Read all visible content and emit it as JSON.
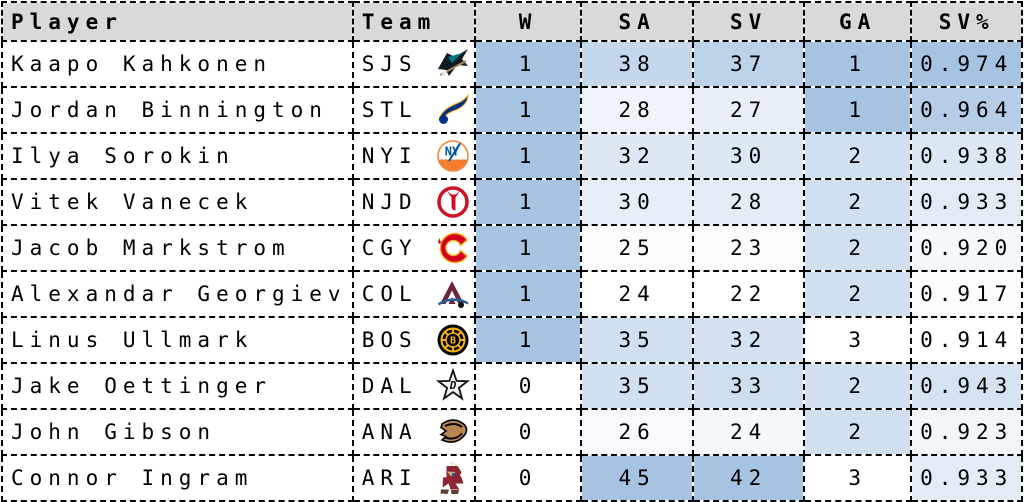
{
  "table": {
    "columns": [
      {
        "key": "player",
        "label": "Player",
        "align": "left"
      },
      {
        "key": "team",
        "label": "Team",
        "align": "left"
      },
      {
        "key": "w",
        "label": "W",
        "align": "center"
      },
      {
        "key": "sa",
        "label": "SA",
        "align": "center"
      },
      {
        "key": "sv",
        "label": "SV",
        "align": "center"
      },
      {
        "key": "ga",
        "label": "GA",
        "align": "center"
      },
      {
        "key": "sv_pct",
        "label": "SV%",
        "align": "center"
      }
    ],
    "stat_keys": [
      "w",
      "sa",
      "sv",
      "ga",
      "sv_pct"
    ],
    "rows": [
      {
        "player": "Kaapo Kahkonen",
        "team": "SJS",
        "logo_icon": "sjs-sharks-logo-icon",
        "cells": {
          "w": {
            "value": "1",
            "bg": "#a6c3e2"
          },
          "sa": {
            "value": "38",
            "bg": "#c4d7ec"
          },
          "sv": {
            "value": "37",
            "bg": "#bcd2e9"
          },
          "ga": {
            "value": "1",
            "bg": "#a6c3e2"
          },
          "sv_pct": {
            "value": "0.974",
            "bg": "#a6c3e2"
          }
        }
      },
      {
        "player": "Jordan Binnington",
        "team": "STL",
        "logo_icon": "stl-blues-logo-icon",
        "cells": {
          "w": {
            "value": "1",
            "bg": "#a6c3e2"
          },
          "sa": {
            "value": "28",
            "bg": "#eef4f9"
          },
          "sv": {
            "value": "27",
            "bg": "#e9f0f8"
          },
          "ga": {
            "value": "1",
            "bg": "#a6c3e2"
          },
          "sv_pct": {
            "value": "0.964",
            "bg": "#b5cde7"
          }
        }
      },
      {
        "player": "Ilya Sorokin",
        "team": "NYI",
        "logo_icon": "nyi-islanders-logo-icon",
        "cells": {
          "w": {
            "value": "1",
            "bg": "#a6c3e2"
          },
          "sa": {
            "value": "32",
            "bg": "#dde8f4"
          },
          "sv": {
            "value": "30",
            "bg": "#dbe7f3"
          },
          "ga": {
            "value": "2",
            "bg": "#d0e0f0"
          },
          "sv_pct": {
            "value": "0.938",
            "bg": "#dbe7f3"
          }
        }
      },
      {
        "player": "Vitek Vanecek",
        "team": "NJD",
        "logo_icon": "njd-devils-logo-icon",
        "cells": {
          "w": {
            "value": "1",
            "bg": "#a6c3e2"
          },
          "sa": {
            "value": "30",
            "bg": "#e6eef7"
          },
          "sv": {
            "value": "28",
            "bg": "#e4edf6"
          },
          "ga": {
            "value": "2",
            "bg": "#d0e0f0"
          },
          "sv_pct": {
            "value": "0.933",
            "bg": "#e3ecf6"
          }
        }
      },
      {
        "player": "Jacob Markstrom",
        "team": "CGY",
        "logo_icon": "cgy-flames-logo-icon",
        "cells": {
          "w": {
            "value": "1",
            "bg": "#a6c3e2"
          },
          "sa": {
            "value": "25",
            "bg": "#fbfcfe"
          },
          "sv": {
            "value": "23",
            "bg": "#fbfcfe"
          },
          "ga": {
            "value": "2",
            "bg": "#d0e0f0"
          },
          "sv_pct": {
            "value": "0.920",
            "bg": "#f6f9fc"
          }
        }
      },
      {
        "player": "Alexandar Georgiev",
        "team": "COL",
        "logo_icon": "col-avalanche-logo-icon",
        "cells": {
          "w": {
            "value": "1",
            "bg": "#a6c3e2"
          },
          "sa": {
            "value": "24",
            "bg": "#ffffff"
          },
          "sv": {
            "value": "22",
            "bg": "#ffffff"
          },
          "ga": {
            "value": "2",
            "bg": "#d0e0f0"
          },
          "sv_pct": {
            "value": "0.917",
            "bg": "#fbfcfe"
          }
        }
      },
      {
        "player": "Linus Ullmark",
        "team": "BOS",
        "logo_icon": "bos-bruins-logo-icon",
        "cells": {
          "w": {
            "value": "1",
            "bg": "#a6c3e2"
          },
          "sa": {
            "value": "35",
            "bg": "#d0e0f0"
          },
          "sv": {
            "value": "32",
            "bg": "#d3e1f1"
          },
          "ga": {
            "value": "3",
            "bg": "#ffffff"
          },
          "sv_pct": {
            "value": "0.914",
            "bg": "#ffffff"
          }
        }
      },
      {
        "player": "Jake Oettinger",
        "team": "DAL",
        "logo_icon": "dal-stars-logo-icon",
        "cells": {
          "w": {
            "value": "0",
            "bg": "#ffffff"
          },
          "sa": {
            "value": "35",
            "bg": "#d0e0f0"
          },
          "sv": {
            "value": "33",
            "bg": "#cedeef"
          },
          "ga": {
            "value": "2",
            "bg": "#d0e0f0"
          },
          "sv_pct": {
            "value": "0.943",
            "bg": "#d4e2f1"
          }
        }
      },
      {
        "player": "John Gibson",
        "team": "ANA",
        "logo_icon": "ana-ducks-logo-icon",
        "cells": {
          "w": {
            "value": "0",
            "bg": "#ffffff"
          },
          "sa": {
            "value": "26",
            "bg": "#f7f9fc"
          },
          "sv": {
            "value": "24",
            "bg": "#f6f9fc"
          },
          "ga": {
            "value": "2",
            "bg": "#d0e0f0"
          },
          "sv_pct": {
            "value": "0.923",
            "bg": "#f2f6fb"
          }
        }
      },
      {
        "player": "Connor Ingram",
        "team": "ARI",
        "logo_icon": "ari-coyotes-logo-icon",
        "cells": {
          "w": {
            "value": "0",
            "bg": "#ffffff"
          },
          "sa": {
            "value": "45",
            "bg": "#a6c3e2"
          },
          "sv": {
            "value": "42",
            "bg": "#a6c3e2"
          },
          "ga": {
            "value": "3",
            "bg": "#ffffff"
          },
          "sv_pct": {
            "value": "0.933",
            "bg": "#e3ecf6"
          }
        }
      }
    ]
  },
  "colors": {
    "header_bg": "#d9d9d9",
    "border": "#000000",
    "heat_high": "#a6c3e2",
    "heat_low": "#ffffff"
  },
  "chart_data": {
    "type": "table",
    "columns": [
      "Player",
      "Team",
      "W",
      "SA",
      "SV",
      "GA",
      "SV%"
    ],
    "rows": [
      [
        "Kaapo Kahkonen",
        "SJS",
        1,
        38,
        37,
        1,
        0.974
      ],
      [
        "Jordan Binnington",
        "STL",
        1,
        28,
        27,
        1,
        0.964
      ],
      [
        "Ilya Sorokin",
        "NYI",
        1,
        32,
        30,
        2,
        0.938
      ],
      [
        "Vitek Vanecek",
        "NJD",
        1,
        30,
        28,
        2,
        0.933
      ],
      [
        "Jacob Markstrom",
        "CGY",
        1,
        25,
        23,
        2,
        0.92
      ],
      [
        "Alexandar Georgiev",
        "COL",
        1,
        24,
        22,
        2,
        0.917
      ],
      [
        "Linus Ullmark",
        "BOS",
        1,
        35,
        32,
        3,
        0.914
      ],
      [
        "Jake Oettinger",
        "DAL",
        0,
        35,
        33,
        2,
        0.943
      ],
      [
        "John Gibson",
        "ANA",
        0,
        26,
        24,
        2,
        0.923
      ],
      [
        "Connor Ingram",
        "ARI",
        0,
        45,
        42,
        3,
        0.933
      ]
    ],
    "heatmap": {
      "shaded_columns": [
        "W",
        "SA",
        "SV",
        "GA",
        "SV%"
      ],
      "low_color": "#ffffff",
      "high_color": "#a6c3e2",
      "reversed_columns": [
        "GA"
      ],
      "note": "per-column min-max scaling; darker blue = better"
    },
    "grid": "dashed-black",
    "legend_position": "none",
    "title": ""
  }
}
